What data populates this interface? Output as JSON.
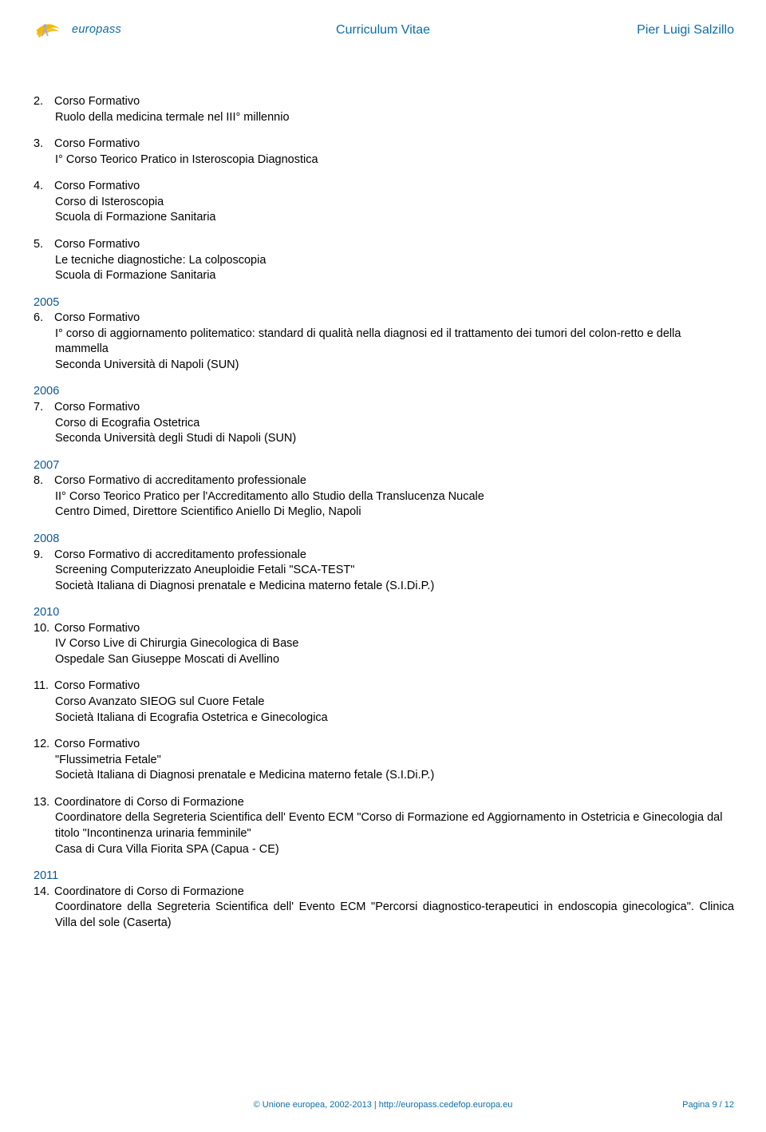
{
  "colors": {
    "accent": "#0d6ea6",
    "year": "#0d5796",
    "text": "#000000",
    "bg": "#ffffff",
    "logo_yellow": "#f5b800",
    "logo_icon": "#a8a8c0"
  },
  "header": {
    "logo_text": "europass",
    "center": "Curriculum Vitae",
    "right": "Pier Luigi Salzillo"
  },
  "body": [
    {
      "type": "item",
      "num": "2.",
      "title": "Corso Formativo",
      "lines": [
        "Ruolo della medicina termale nel III° millennio"
      ]
    },
    {
      "type": "item",
      "num": "3.",
      "title": "Corso Formativo",
      "lines": [
        "I° Corso Teorico Pratico in Isteroscopia Diagnostica"
      ]
    },
    {
      "type": "item",
      "num": "4.",
      "title": "Corso Formativo",
      "lines": [
        "Corso di Isteroscopia",
        "Scuola di Formazione Sanitaria"
      ]
    },
    {
      "type": "item",
      "num": "5.",
      "title": "Corso Formativo",
      "lines": [
        "Le tecniche diagnostiche: La colposcopia",
        "Scuola di Formazione Sanitaria"
      ]
    },
    {
      "type": "year",
      "label": "2005"
    },
    {
      "type": "item",
      "num": "6.",
      "title": "Corso Formativo",
      "lines": [
        "I° corso di aggiornamento politematico: standard di qualità nella diagnosi ed il trattamento dei tumori del colon-retto e della mammella",
        "Seconda Università di Napoli (SUN)"
      ]
    },
    {
      "type": "year",
      "label": "2006"
    },
    {
      "type": "item",
      "num": "7.",
      "title": "Corso Formativo",
      "lines": [
        "Corso di Ecografia Ostetrica",
        "Seconda Università degli Studi di Napoli (SUN)"
      ]
    },
    {
      "type": "year",
      "label": "2007"
    },
    {
      "type": "item",
      "num": "8.",
      "title": "Corso Formativo di accreditamento professionale",
      "lines": [
        "II° Corso Teorico Pratico per l'Accreditamento allo Studio della Translucenza Nucale",
        "Centro Dimed, Direttore Scientifico Aniello Di Meglio, Napoli"
      ]
    },
    {
      "type": "year",
      "label": "2008"
    },
    {
      "type": "item",
      "num": "9.",
      "title": "Corso Formativo di accreditamento professionale",
      "lines": [
        "Screening Computerizzato Aneuploidie Fetali \"SCA-TEST\"",
        "Società Italiana di Diagnosi prenatale e Medicina materno fetale (S.I.Di.P.)"
      ]
    },
    {
      "type": "year",
      "label": "2010"
    },
    {
      "type": "item",
      "num": "10.",
      "title": "Corso Formativo",
      "lines": [
        "IV Corso Live di Chirurgia Ginecologica di Base",
        "Ospedale San Giuseppe Moscati di Avellino"
      ]
    },
    {
      "type": "item",
      "num": "11.",
      "title": "Corso Formativo",
      "lines": [
        "Corso Avanzato SIEOG sul Cuore Fetale",
        "Società Italiana di Ecografia Ostetrica e Ginecologica"
      ]
    },
    {
      "type": "item",
      "num": "12.",
      "title": "Corso Formativo",
      "lines": [
        "\"Flussimetria Fetale\"",
        "Società Italiana di Diagnosi prenatale e Medicina materno fetale (S.I.Di.P.)"
      ]
    },
    {
      "type": "item",
      "num": "13.",
      "title": "Coordinatore di Corso di Formazione",
      "lines": [
        "Coordinatore della Segreteria Scientifica dell' Evento ECM  \"Corso di Formazione ed Aggiornamento in Ostetricia e Ginecologia dal titolo \"Incontinenza urinaria femminile\"",
        "Casa di Cura Villa Fiorita SPA (Capua - CE)"
      ]
    },
    {
      "type": "year",
      "label": "2011"
    },
    {
      "type": "item",
      "num": "14.",
      "title": "Coordinatore di Corso di Formazione",
      "lines_justify": true,
      "lines": [
        "Coordinatore della Segreteria Scientifica dell' Evento ECM \"Percorsi diagnostico-terapeutici in endoscopia ginecologica\". Clinica Villa del sole (Caserta)"
      ]
    }
  ],
  "footer": {
    "center": "© Unione europea, 2002-2013 | http://europass.cedefop.europa.eu",
    "right": "Pagina 9 / 12"
  }
}
